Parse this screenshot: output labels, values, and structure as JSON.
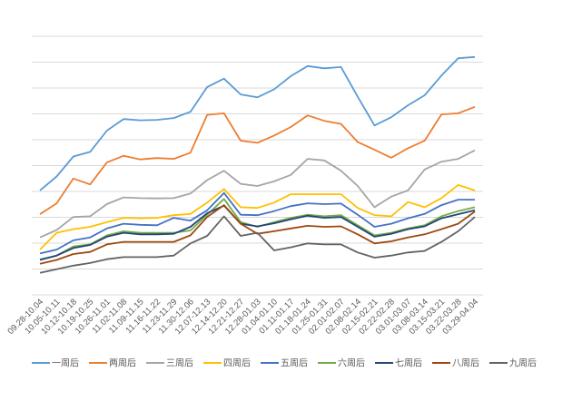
{
  "chart_data": {
    "type": "line",
    "title": "",
    "xlabel": "",
    "ylabel": "",
    "ylim": [
      0,
      10
    ],
    "y_ticks_labeled": false,
    "grid": true,
    "legend_position": "bottom",
    "categories": [
      "09.28-10.04",
      "10.05-10.11",
      "10.12-10.18",
      "10.19-10.25",
      "10.26-11.01",
      "11.02-11.08",
      "11.09-11.15",
      "11.16-11.22",
      "11.23-11.29",
      "11.30-12.06",
      "12.07-12.13",
      "12.14-12.20",
      "12.21-12.27",
      "12.28-01.03",
      "01.04-01.10",
      "01.11-01.17",
      "01.18-01.24",
      "01.25-01.31",
      "02.01-02.07",
      "02.08-02.14",
      "02.15-02.21",
      "02.22-02.28",
      "03.01-03.07",
      "03.08-03.14",
      "03.15-03.21",
      "03.22-03.28",
      "03.29-04.04"
    ],
    "series": [
      {
        "name": "一周后",
        "color": "#5B9BD5",
        "values": [
          4.04,
          4.58,
          5.35,
          5.53,
          6.35,
          6.8,
          6.75,
          6.77,
          6.84,
          7.08,
          8.04,
          8.36,
          7.75,
          7.64,
          7.95,
          8.46,
          8.85,
          8.76,
          8.81,
          7.66,
          6.55,
          6.87,
          7.33,
          7.72,
          8.48,
          9.15,
          9.2
        ]
      },
      {
        "name": "两周后",
        "color": "#ED7D31",
        "values": [
          3.12,
          3.54,
          4.5,
          4.27,
          5.12,
          5.38,
          5.24,
          5.29,
          5.26,
          5.5,
          6.96,
          7.02,
          5.96,
          5.88,
          6.16,
          6.49,
          6.94,
          6.73,
          6.61,
          5.91,
          5.61,
          5.3,
          5.67,
          5.96,
          6.98,
          7.02,
          7.27
        ]
      },
      {
        "name": "三周后",
        "color": "#A5A5A5",
        "values": [
          2.22,
          2.51,
          3.01,
          3.04,
          3.51,
          3.77,
          3.74,
          3.73,
          3.74,
          3.92,
          4.44,
          4.8,
          4.29,
          4.21,
          4.39,
          4.64,
          5.26,
          5.2,
          4.8,
          4.21,
          3.39,
          3.8,
          4.04,
          4.85,
          5.15,
          5.26,
          5.59
        ]
      },
      {
        "name": "四周后",
        "color": "#FFC000",
        "values": [
          1.75,
          2.4,
          2.54,
          2.63,
          2.81,
          2.98,
          2.96,
          2.98,
          3.08,
          3.13,
          3.57,
          4.09,
          3.39,
          3.36,
          3.57,
          3.89,
          3.89,
          3.89,
          3.89,
          3.36,
          3.08,
          3.04,
          3.59,
          3.39,
          3.74,
          4.25,
          4.04
        ]
      },
      {
        "name": "五周后",
        "color": "#4472C4",
        "values": [
          1.6,
          1.75,
          2.11,
          2.22,
          2.57,
          2.75,
          2.71,
          2.69,
          2.98,
          2.87,
          3.27,
          3.94,
          3.1,
          3.08,
          3.24,
          3.43,
          3.54,
          3.51,
          3.53,
          3.1,
          2.63,
          2.75,
          2.96,
          3.13,
          3.47,
          3.68,
          3.68
        ]
      },
      {
        "name": "六周后",
        "color": "#70AD47",
        "values": [
          1.37,
          1.52,
          1.87,
          1.95,
          2.3,
          2.46,
          2.4,
          2.4,
          2.4,
          2.49,
          3.1,
          3.71,
          2.81,
          2.63,
          2.81,
          2.98,
          3.1,
          3.04,
          3.08,
          2.69,
          2.3,
          2.4,
          2.57,
          2.69,
          3.04,
          3.24,
          3.39
        ]
      },
      {
        "name": "七周后",
        "color": "#264478",
        "values": [
          1.35,
          1.52,
          1.81,
          1.93,
          2.25,
          2.4,
          2.34,
          2.34,
          2.36,
          2.63,
          3.16,
          3.45,
          2.75,
          2.65,
          2.77,
          2.92,
          3.06,
          2.98,
          3.01,
          2.63,
          2.25,
          2.36,
          2.54,
          2.65,
          2.96,
          3.12,
          3.27
        ]
      },
      {
        "name": "八周后",
        "color": "#9E480E",
        "values": [
          1.2,
          1.35,
          1.58,
          1.66,
          1.95,
          2.05,
          2.05,
          2.05,
          2.05,
          2.3,
          3.01,
          3.47,
          2.75,
          2.36,
          2.46,
          2.57,
          2.67,
          2.63,
          2.65,
          2.34,
          1.99,
          2.07,
          2.22,
          2.34,
          2.54,
          2.75,
          3.22
        ]
      },
      {
        "name": "九周后",
        "color": "#636363",
        "values": [
          0.85,
          0.99,
          1.13,
          1.23,
          1.38,
          1.46,
          1.46,
          1.46,
          1.52,
          1.99,
          2.28,
          3.04,
          2.28,
          2.4,
          1.72,
          1.84,
          1.99,
          1.95,
          1.95,
          1.64,
          1.44,
          1.52,
          1.64,
          1.7,
          2.05,
          2.46,
          3.01
        ]
      }
    ]
  }
}
